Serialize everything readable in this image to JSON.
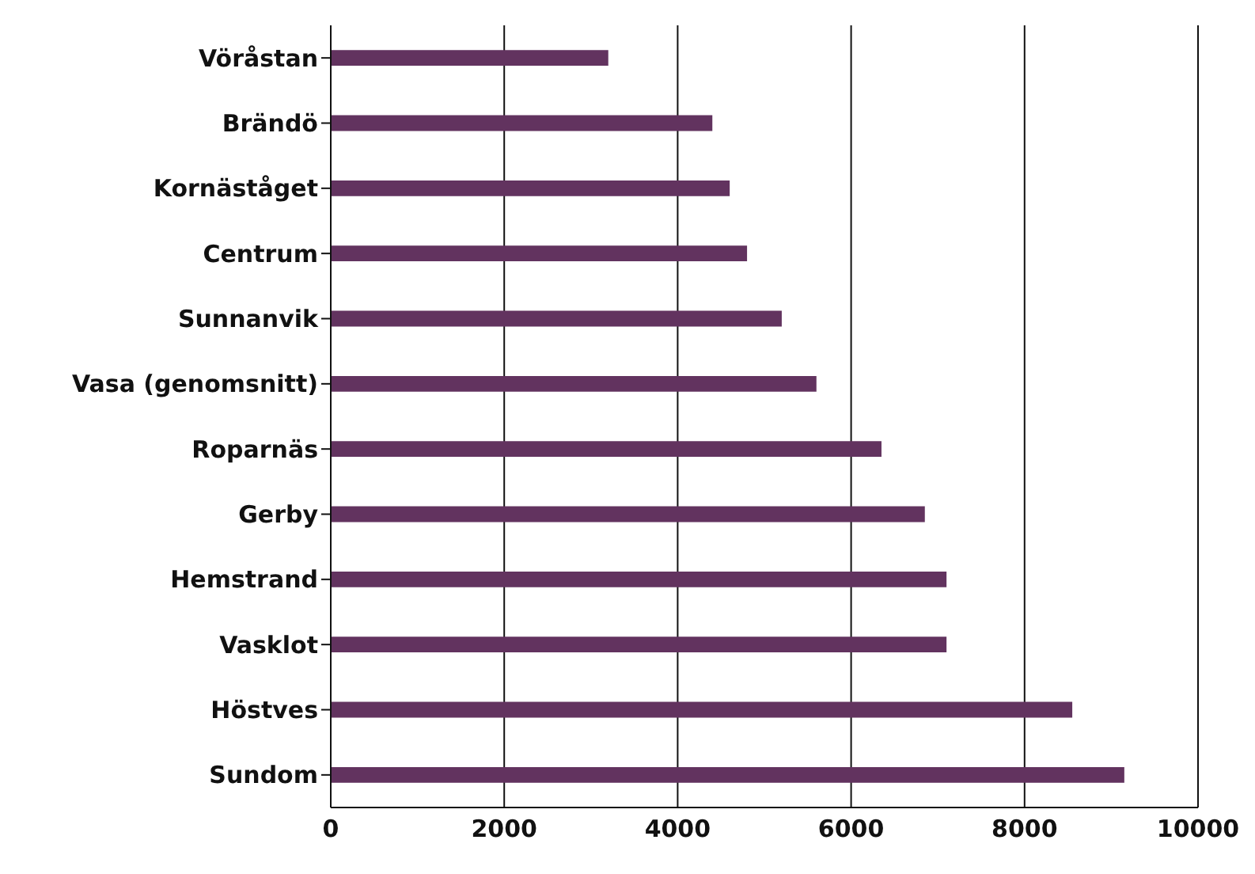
{
  "chart_data": {
    "type": "bar",
    "orientation": "horizontal",
    "categories": [
      "Vöråstan",
      "Brändö",
      "Kornäståget",
      "Centrum",
      "Sunnanvik",
      "Vasa (genomsnitt)",
      "Roparnäs",
      "Gerby",
      "Hemstrand",
      "Vasklot",
      "Höstves",
      "Sundom"
    ],
    "values": [
      3200,
      4400,
      4600,
      4800,
      5200,
      5600,
      6350,
      6850,
      7100,
      7100,
      8550,
      9150
    ],
    "color": "#62335f",
    "xlim": [
      0,
      10000
    ],
    "xticks": [
      0,
      2000,
      4000,
      6000,
      8000,
      10000
    ],
    "grid": "x"
  }
}
